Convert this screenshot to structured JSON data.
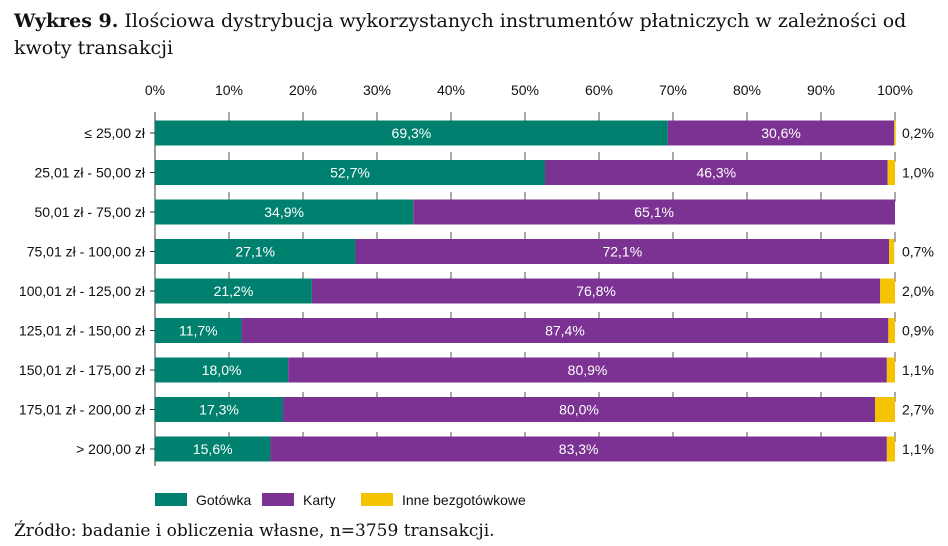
{
  "title": {
    "prefix": "Wykres 9.",
    "text": "Ilościowa dystrybucja wykorzystanych instrumentów płatniczych w zależności od kwoty transakcji"
  },
  "source": "Źródło: badanie i obliczenia własne, n=3759 transakcji.",
  "colors": {
    "gotowka": "#00806E",
    "karty": "#7B3292",
    "inne": "#F5C400"
  },
  "chart_data": {
    "type": "bar",
    "orientation": "horizontal",
    "stacked": true,
    "xlim": [
      0,
      100
    ],
    "x_ticks": [
      "0%",
      "10%",
      "20%",
      "30%",
      "40%",
      "50%",
      "60%",
      "70%",
      "80%",
      "90%",
      "100%"
    ],
    "categories": [
      "≤ 25,00 zł",
      "25,01 zł - 50,00 zł",
      "50,01 zł - 75,00 zł",
      "75,01 zł - 100,00 zł",
      "100,01 zł - 125,00 zł",
      "125,01 zł - 150,00 zł",
      "150,01 zł - 175,00 zł",
      "175,01 zł - 200,00 zł",
      "> 200,00 zł"
    ],
    "series": [
      {
        "name": "Gotówka",
        "color": "#00806E",
        "values": [
          69.3,
          52.7,
          34.9,
          27.1,
          21.2,
          11.7,
          18.0,
          17.3,
          15.6
        ],
        "labels": [
          "69,3%",
          "52,7%",
          "34,9%",
          "27,1%",
          "21,2%",
          "11,7%",
          "18,0%",
          "17,3%",
          "15,6%"
        ]
      },
      {
        "name": "Karty",
        "color": "#7B3292",
        "values": [
          30.6,
          46.3,
          65.1,
          72.1,
          76.8,
          87.4,
          80.9,
          80.0,
          83.3
        ],
        "labels": [
          "30,6%",
          "46,3%",
          "65,1%",
          "72,1%",
          "76,8%",
          "87,4%",
          "80,9%",
          "80,0%",
          "83,3%"
        ]
      },
      {
        "name": "Inne bezgotówkowe",
        "color": "#F5C400",
        "values": [
          0.2,
          1.0,
          0.0,
          0.7,
          2.0,
          0.9,
          1.1,
          2.7,
          1.1
        ],
        "labels": [
          "0,2%",
          "1,0%",
          "",
          "0,7%",
          "2,0%",
          "0,9%",
          "1,1%",
          "2,7%",
          "1,1%"
        ]
      }
    ],
    "grid": true,
    "legend_position": "bottom"
  }
}
